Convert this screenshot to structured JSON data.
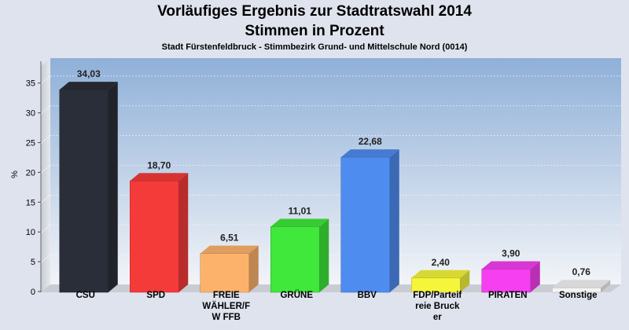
{
  "title": "Vorläufiges Ergebnis zur Stadtratswahl 2014",
  "title2": "Stimmen in Prozent",
  "subtitle": "Stadt Fürstenfeldbruck - Stimmbezirk Grund- und Mittelschule Nord (0014)",
  "chart_data": {
    "type": "bar",
    "ylabel": "%",
    "ylim": [
      0,
      38
    ],
    "yticks": [
      0,
      5,
      10,
      15,
      20,
      25,
      30,
      35
    ],
    "grid": true,
    "categories": [
      [
        "CSU"
      ],
      [
        "SPD"
      ],
      [
        "FREIE",
        "WÄHLER/F",
        "W FFB"
      ],
      [
        "GRÜNE"
      ],
      [
        "BBV"
      ],
      [
        "FDP/Parteif",
        "reie Bruck",
        "er"
      ],
      [
        "PIRATEN"
      ],
      [
        "Sonstige"
      ]
    ],
    "values": [
      34.03,
      18.7,
      6.51,
      11.01,
      22.68,
      2.4,
      3.9,
      0.76
    ],
    "value_labels": [
      "34,03",
      "18,70",
      "6,51",
      "11,01",
      "22,68",
      "2,40",
      "3,90",
      "0,76"
    ],
    "colors": [
      "#2a2e38",
      "#f53a3a",
      "#fdb26c",
      "#3fe83a",
      "#4f8cf0",
      "#f5f53a",
      "#f53ff0",
      "#f4f4f4"
    ]
  }
}
